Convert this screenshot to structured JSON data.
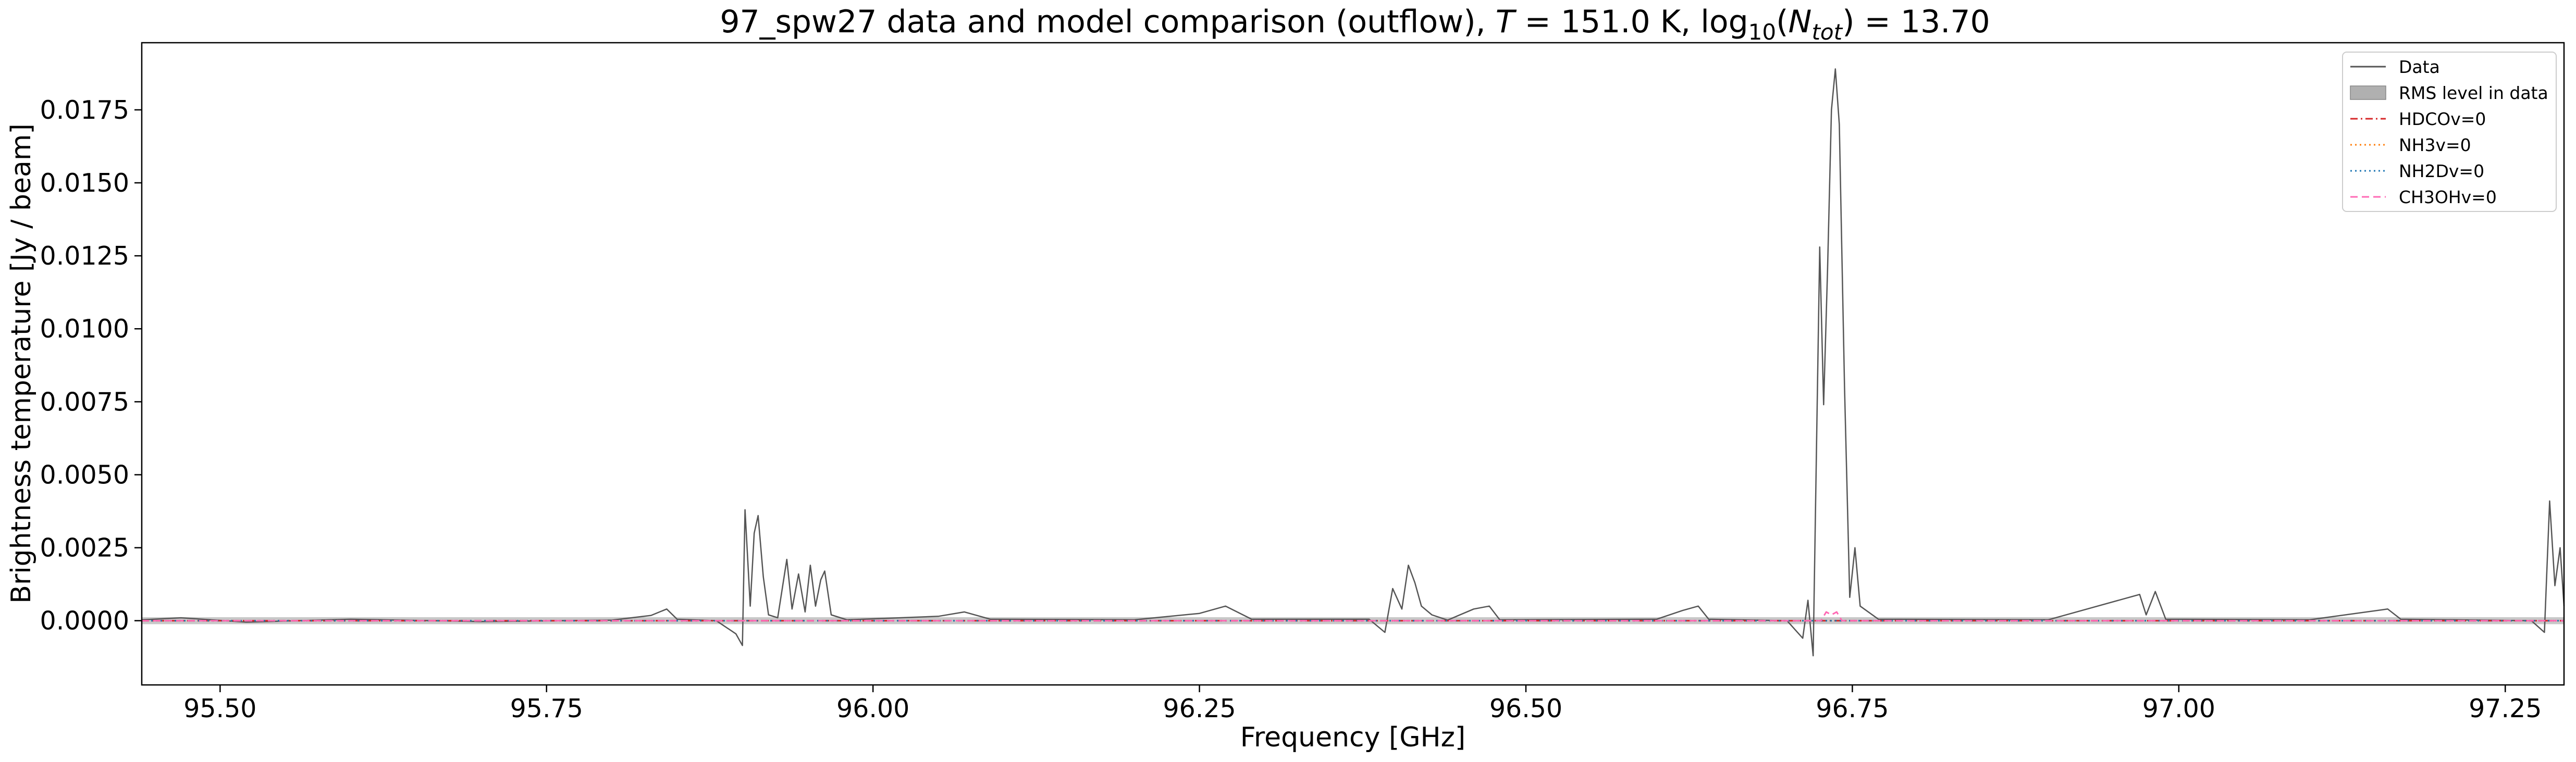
{
  "chart_data": {
    "type": "line",
    "title": {
      "main": "97_spw27 data and model comparison (outflow), ",
      "t_symbol": "T",
      "t_value": " = 151.0 K, log",
      "log_sub": "10",
      "paren_open": "(",
      "n_symbol": "N",
      "n_sub": "tot",
      "n_value": ") = 13.70"
    },
    "xlabel": "Frequency [GHz]",
    "ylabel": "Brightness temperature [Jy / beam]",
    "xlim": [
      95.44,
      97.295
    ],
    "ylim": [
      -0.0022,
      0.0198
    ],
    "x_ticks": [
      {
        "value": 95.5,
        "label": "95.50"
      },
      {
        "value": 95.75,
        "label": "95.75"
      },
      {
        "value": 96.0,
        "label": "96.00"
      },
      {
        "value": 96.25,
        "label": "96.25"
      },
      {
        "value": 96.5,
        "label": "96.50"
      },
      {
        "value": 96.75,
        "label": "96.75"
      },
      {
        "value": 97.0,
        "label": "97.00"
      },
      {
        "value": 97.25,
        "label": "97.25"
      }
    ],
    "y_ticks": [
      {
        "value": 0.0,
        "label": "0.0000"
      },
      {
        "value": 0.0025,
        "label": "0.0025"
      },
      {
        "value": 0.005,
        "label": "0.0050"
      },
      {
        "value": 0.0075,
        "label": "0.0075"
      },
      {
        "value": 0.01,
        "label": "0.0100"
      },
      {
        "value": 0.0125,
        "label": "0.0125"
      },
      {
        "value": 0.015,
        "label": "0.0150"
      },
      {
        "value": 0.0175,
        "label": "0.0175"
      }
    ],
    "grid": false,
    "legend_position": "top-right",
    "rms_band": [
      -0.00012,
      0.00012
    ],
    "series": [
      {
        "name": "Data",
        "color": "#555555",
        "style": "solid",
        "points": [
          [
            95.44,
            3e-05
          ],
          [
            95.47,
            0.0001
          ],
          [
            95.52,
            -5e-05
          ],
          [
            95.6,
            5e-05
          ],
          [
            95.7,
            -3e-05
          ],
          [
            95.8,
            2e-05
          ],
          [
            95.83,
            0.00018
          ],
          [
            95.842,
            0.0004
          ],
          [
            95.85,
            5e-05
          ],
          [
            95.88,
            0.0
          ],
          [
            95.895,
            -0.00045
          ],
          [
            95.9,
            -0.00085
          ],
          [
            95.902,
            0.0038
          ],
          [
            95.906,
            0.0005
          ],
          [
            95.909,
            0.003
          ],
          [
            95.912,
            0.0036
          ],
          [
            95.916,
            0.0015
          ],
          [
            95.92,
            0.0002
          ],
          [
            95.927,
            0.0001
          ],
          [
            95.934,
            0.0021
          ],
          [
            95.938,
            0.0004
          ],
          [
            95.943,
            0.0016
          ],
          [
            95.948,
            0.0003
          ],
          [
            95.952,
            0.0019
          ],
          [
            95.956,
            0.0005
          ],
          [
            95.96,
            0.0014
          ],
          [
            95.963,
            0.0017
          ],
          [
            95.968,
            0.0002
          ],
          [
            95.98,
            3e-05
          ],
          [
            96.05,
            0.00015
          ],
          [
            96.07,
            0.0003
          ],
          [
            96.09,
            5e-05
          ],
          [
            96.2,
            3e-05
          ],
          [
            96.25,
            0.00025
          ],
          [
            96.27,
            0.0005
          ],
          [
            96.29,
            5e-05
          ],
          [
            96.38,
            5e-05
          ],
          [
            96.392,
            -0.0004
          ],
          [
            96.398,
            0.0011
          ],
          [
            96.405,
            0.0004
          ],
          [
            96.41,
            0.0019
          ],
          [
            96.415,
            0.0013
          ],
          [
            96.42,
            0.0005
          ],
          [
            96.428,
            0.0002
          ],
          [
            96.44,
            2e-05
          ],
          [
            96.46,
            0.0004
          ],
          [
            96.472,
            0.0005
          ],
          [
            96.48,
            3e-05
          ],
          [
            96.6,
            5e-05
          ],
          [
            96.62,
            0.00035
          ],
          [
            96.632,
            0.0005
          ],
          [
            96.64,
            5e-05
          ],
          [
            96.7,
            0.0
          ],
          [
            96.712,
            -0.0006
          ],
          [
            96.716,
            0.0007
          ],
          [
            96.72,
            -0.0012
          ],
          [
            96.725,
            0.0128
          ],
          [
            96.728,
            0.0074
          ],
          [
            96.731,
            0.012
          ],
          [
            96.734,
            0.0175
          ],
          [
            96.737,
            0.0189
          ],
          [
            96.74,
            0.017
          ],
          [
            96.744,
            0.008
          ],
          [
            96.748,
            0.0008
          ],
          [
            96.752,
            0.0025
          ],
          [
            96.756,
            0.0005
          ],
          [
            96.77,
            5e-05
          ],
          [
            96.9,
            3e-05
          ],
          [
            96.97,
            0.0009
          ],
          [
            96.975,
            0.0002
          ],
          [
            96.982,
            0.001
          ],
          [
            96.99,
            5e-05
          ],
          [
            97.1,
            3e-05
          ],
          [
            97.16,
            0.0004
          ],
          [
            97.17,
            5e-05
          ],
          [
            97.27,
            0.0
          ],
          [
            97.28,
            -0.0004
          ],
          [
            97.284,
            0.0041
          ],
          [
            97.288,
            0.0012
          ],
          [
            97.292,
            0.0025
          ],
          [
            97.295,
            0.0005
          ]
        ]
      },
      {
        "name": "RMS level in data",
        "color": "#b0b0b0",
        "style": "band"
      },
      {
        "name": "HDCOv=0",
        "color": "#d62728",
        "style": "dashdot",
        "points": [
          [
            95.44,
            0.0
          ],
          [
            97.295,
            0.0
          ]
        ]
      },
      {
        "name": "NH3v=0",
        "color": "#ff7f0e",
        "style": "dotted",
        "points": [
          [
            95.44,
            0.0
          ],
          [
            97.295,
            0.0
          ]
        ]
      },
      {
        "name": "NH2Dv=0",
        "color": "#1f77b4",
        "style": "dotted",
        "points": [
          [
            95.44,
            0.0
          ],
          [
            97.295,
            0.0
          ]
        ]
      },
      {
        "name": "CH3OHv=0",
        "color": "#ff69b4",
        "style": "dashed",
        "points": [
          [
            95.44,
            0.0
          ],
          [
            96.726,
            0.0
          ],
          [
            96.73,
            0.0003
          ],
          [
            96.734,
            0.0002
          ],
          [
            96.738,
            0.0003
          ],
          [
            96.742,
            0.0
          ],
          [
            97.295,
            0.0
          ]
        ]
      }
    ]
  }
}
